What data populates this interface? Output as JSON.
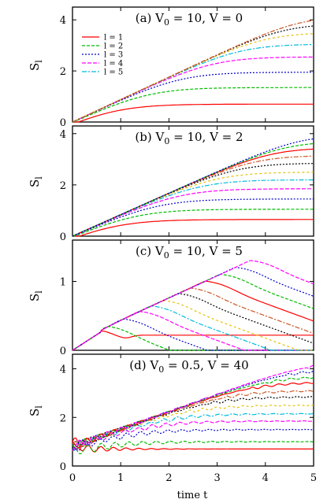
{
  "figure": {
    "xlabel": "time t"
  },
  "colors": {
    "l1": "#ff0000",
    "l2": "#00bb00",
    "l3": "#0000cc",
    "l4": "#ff00ff",
    "l5": "#00bbdd",
    "l6": "#e6c100",
    "l7": "#000000",
    "l8": "#cc5522",
    "envelope": "#666666"
  },
  "chart_data": [
    {
      "type": "line",
      "title": "(a) V_0 = 10, V = 0",
      "title_main": "(a) V",
      "title_sub": "0",
      "title_rest": " = 10, V = 0",
      "ylabel": "S",
      "ylabel_sub": "l",
      "xlim": [
        0,
        5
      ],
      "ylim": [
        0,
        4.5
      ],
      "yticks": [
        0,
        2,
        4
      ],
      "xticks": [
        0,
        1,
        2,
        3,
        4,
        5
      ],
      "legend": {
        "placement": "top-left",
        "entries": [
          "l = 1",
          "l = 2",
          "l = 3",
          "l = 4",
          "l = 5"
        ]
      },
      "slope": 0.88,
      "growth_shape": "linear",
      "series": [
        {
          "name": "l = 1",
          "plateau": 0.7
        },
        {
          "name": "l = 2",
          "plateau": 1.35
        },
        {
          "name": "l = 3",
          "plateau": 1.95
        },
        {
          "name": "l = 4",
          "plateau": 2.55
        },
        {
          "name": "l = 5",
          "plateau": 3.05
        },
        {
          "plateau": 3.5
        },
        {
          "plateau": 3.85
        },
        {
          "plateau": 4.15
        }
      ]
    },
    {
      "type": "line",
      "title": "(b) V_0 = 10, V = 2",
      "title_main": "(b) V",
      "title_sub": "0",
      "title_rest": " = 10, V = 2",
      "ylabel": "S",
      "ylabel_sub": "l",
      "xlim": [
        0,
        5
      ],
      "ylim": [
        0,
        4.3
      ],
      "yticks": [
        0,
        2,
        4
      ],
      "xticks": [
        0,
        1,
        2,
        3,
        4,
        5
      ],
      "slope": 0.84,
      "growth_shape": "linear",
      "series": [
        {
          "name": "l = 1",
          "plateau": 0.65
        },
        {
          "name": "l = 2",
          "plateau": 1.05
        },
        {
          "name": "l = 3",
          "plateau": 1.45
        },
        {
          "name": "l = 4",
          "plateau": 1.85
        },
        {
          "name": "l = 5",
          "plateau": 2.2
        },
        {
          "plateau": 2.5
        },
        {
          "plateau": 2.85
        },
        {
          "plateau": 3.15
        },
        {
          "plateau": 3.45
        },
        {
          "plateau": 3.7
        },
        {
          "plateau": 3.95
        }
      ]
    },
    {
      "type": "line",
      "title": "(c) V_0 = 10, V = 5",
      "title_main": "(c) V",
      "title_sub": "0",
      "title_rest": " = 10, V = 5",
      "ylabel": "S",
      "ylabel_sub": "l",
      "xlim": [
        0,
        5
      ],
      "ylim": [
        0,
        1.6
      ],
      "yticks": [
        0,
        1
      ],
      "xticks": [
        0,
        1,
        2,
        3,
        4,
        5
      ],
      "slope": 0.32,
      "growth_shape": "bump",
      "series": [
        {
          "name": "l = 1",
          "plateau": 0.22
        },
        {
          "name": "l = 2",
          "plateau": 0.34
        },
        {
          "name": "l = 3",
          "plateau": 0.45
        },
        {
          "name": "l = 4",
          "plateau": 0.56
        },
        {
          "name": "l = 5",
          "plateau": 0.64
        },
        {
          "plateau": 0.72
        },
        {
          "plateau": 0.82
        },
        {
          "plateau": 0.9
        },
        {
          "plateau": 1.0
        },
        {
          "plateau": 1.1
        },
        {
          "plateau": 1.2
        },
        {
          "plateau": 1.3
        }
      ]
    },
    {
      "type": "line",
      "title": "(d) V_0 = 0.5, V = 40",
      "title_main": "(d) V",
      "title_sub": "0",
      "title_rest": " = 0.5, V = 40",
      "ylabel": "S",
      "ylabel_sub": "l",
      "xlim": [
        0,
        5
      ],
      "ylim": [
        0,
        4.6
      ],
      "yticks": [
        0,
        2,
        4
      ],
      "xticks": [
        0,
        1,
        2,
        3,
        4,
        5
      ],
      "slope": 0.72,
      "growth_shape": "oscillating",
      "series": [
        {
          "name": "l = 1",
          "plateau": 0.7
        },
        {
          "name": "l = 2",
          "plateau": 1.0
        },
        {
          "name": "l = 3",
          "plateau": 1.5
        },
        {
          "name": "l = 4",
          "plateau": 1.85
        },
        {
          "name": "l = 5",
          "plateau": 2.15
        },
        {
          "plateau": 2.5
        },
        {
          "plateau": 2.85
        },
        {
          "plateau": 3.1
        },
        {
          "plateau": 3.45
        },
        {
          "plateau": 3.7
        },
        {
          "plateau": 4.0
        },
        {
          "plateau": 4.3
        }
      ]
    }
  ]
}
